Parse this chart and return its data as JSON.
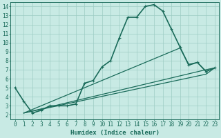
{
  "xlabel": "Humidex (Indice chaleur)",
  "ylabel": "",
  "background_color": "#c8eae4",
  "grid_color": "#9dccc4",
  "line_color": "#1a6b5a",
  "xlim": [
    -0.5,
    23.5
  ],
  "ylim": [
    1.5,
    14.5
  ],
  "yticks": [
    2,
    3,
    4,
    5,
    6,
    7,
    8,
    9,
    10,
    11,
    12,
    13,
    14
  ],
  "xticks": [
    0,
    1,
    2,
    3,
    4,
    5,
    6,
    7,
    8,
    9,
    10,
    11,
    12,
    13,
    14,
    15,
    16,
    17,
    18,
    19,
    20,
    21,
    22,
    23
  ],
  "series_main": {
    "x": [
      0,
      1,
      2,
      3,
      4,
      5,
      6,
      7,
      8,
      9,
      10,
      11,
      12,
      13,
      14,
      15,
      16,
      17,
      18,
      19,
      20,
      21,
      22,
      23
    ],
    "y": [
      5.0,
      3.5,
      2.2,
      2.5,
      3.0,
      3.0,
      3.0,
      3.2,
      5.5,
      5.8,
      7.3,
      8.0,
      10.5,
      12.8,
      12.8,
      14.0,
      14.2,
      13.5,
      11.5,
      9.5,
      7.5,
      7.8,
      6.8,
      7.2
    ],
    "color": "#1a6b5a",
    "linewidth": 1.2,
    "marker": "+"
  },
  "series_lines": [
    {
      "x": [
        1,
        19,
        20,
        21,
        22,
        23
      ],
      "y": [
        2.2,
        9.4,
        7.6,
        7.8,
        6.8,
        7.2
      ],
      "color": "#1a6b5a",
      "linewidth": 0.9
    },
    {
      "x": [
        1,
        22,
        23
      ],
      "y": [
        2.2,
        7.0,
        7.2
      ],
      "color": "#1a6b5a",
      "linewidth": 0.9
    },
    {
      "x": [
        1,
        22,
        23
      ],
      "y": [
        2.2,
        6.5,
        7.2
      ],
      "color": "#1a6b5a",
      "linewidth": 0.9
    }
  ]
}
